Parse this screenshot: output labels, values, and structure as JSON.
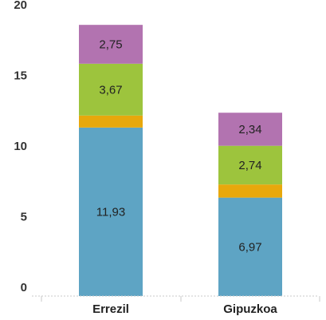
{
  "chart_data": {
    "type": "bar",
    "stacked": true,
    "categories": [
      "Errezil",
      "Gipuzkoa"
    ],
    "series": [
      {
        "values": [
          11.93,
          6.97
        ],
        "labels": [
          "11,93",
          "6,97"
        ],
        "color": "#5ea4c4"
      },
      {
        "values": [
          0.85,
          0.93
        ],
        "labels": [
          "",
          ""
        ],
        "color": "#e8a80c"
      },
      {
        "values": [
          3.67,
          2.74
        ],
        "labels": [
          "3,67",
          "2,74"
        ],
        "color": "#9dc43d"
      },
      {
        "values": [
          2.75,
          2.34
        ],
        "labels": [
          "2,75",
          "2,34"
        ],
        "color": "#b273b0"
      }
    ],
    "yticks": [
      "0",
      "5",
      "10",
      "15",
      "20"
    ],
    "ylim": [
      0,
      20
    ],
    "grid": false
  }
}
